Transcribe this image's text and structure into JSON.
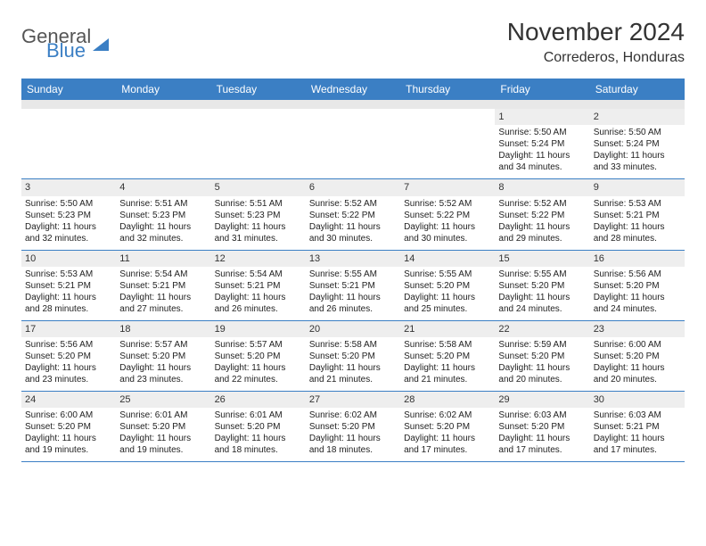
{
  "logo": {
    "text1": "General",
    "text2": "Blue"
  },
  "title": "November 2024",
  "location": "Correderos, Honduras",
  "colors": {
    "header_bg": "#3b7fc4",
    "header_text": "#ffffff",
    "daynum_bg": "#eeeeee",
    "border": "#3b7fc4",
    "body_text": "#222222",
    "title_text": "#333333"
  },
  "weekdays": [
    "Sunday",
    "Monday",
    "Tuesday",
    "Wednesday",
    "Thursday",
    "Friday",
    "Saturday"
  ],
  "weeks": [
    [
      null,
      null,
      null,
      null,
      null,
      {
        "n": "1",
        "sr": "5:50 AM",
        "ss": "5:24 PM",
        "dl": "11 hours and 34 minutes."
      },
      {
        "n": "2",
        "sr": "5:50 AM",
        "ss": "5:24 PM",
        "dl": "11 hours and 33 minutes."
      }
    ],
    [
      {
        "n": "3",
        "sr": "5:50 AM",
        "ss": "5:23 PM",
        "dl": "11 hours and 32 minutes."
      },
      {
        "n": "4",
        "sr": "5:51 AM",
        "ss": "5:23 PM",
        "dl": "11 hours and 32 minutes."
      },
      {
        "n": "5",
        "sr": "5:51 AM",
        "ss": "5:23 PM",
        "dl": "11 hours and 31 minutes."
      },
      {
        "n": "6",
        "sr": "5:52 AM",
        "ss": "5:22 PM",
        "dl": "11 hours and 30 minutes."
      },
      {
        "n": "7",
        "sr": "5:52 AM",
        "ss": "5:22 PM",
        "dl": "11 hours and 30 minutes."
      },
      {
        "n": "8",
        "sr": "5:52 AM",
        "ss": "5:22 PM",
        "dl": "11 hours and 29 minutes."
      },
      {
        "n": "9",
        "sr": "5:53 AM",
        "ss": "5:21 PM",
        "dl": "11 hours and 28 minutes."
      }
    ],
    [
      {
        "n": "10",
        "sr": "5:53 AM",
        "ss": "5:21 PM",
        "dl": "11 hours and 28 minutes."
      },
      {
        "n": "11",
        "sr": "5:54 AM",
        "ss": "5:21 PM",
        "dl": "11 hours and 27 minutes."
      },
      {
        "n": "12",
        "sr": "5:54 AM",
        "ss": "5:21 PM",
        "dl": "11 hours and 26 minutes."
      },
      {
        "n": "13",
        "sr": "5:55 AM",
        "ss": "5:21 PM",
        "dl": "11 hours and 26 minutes."
      },
      {
        "n": "14",
        "sr": "5:55 AM",
        "ss": "5:20 PM",
        "dl": "11 hours and 25 minutes."
      },
      {
        "n": "15",
        "sr": "5:55 AM",
        "ss": "5:20 PM",
        "dl": "11 hours and 24 minutes."
      },
      {
        "n": "16",
        "sr": "5:56 AM",
        "ss": "5:20 PM",
        "dl": "11 hours and 24 minutes."
      }
    ],
    [
      {
        "n": "17",
        "sr": "5:56 AM",
        "ss": "5:20 PM",
        "dl": "11 hours and 23 minutes."
      },
      {
        "n": "18",
        "sr": "5:57 AM",
        "ss": "5:20 PM",
        "dl": "11 hours and 23 minutes."
      },
      {
        "n": "19",
        "sr": "5:57 AM",
        "ss": "5:20 PM",
        "dl": "11 hours and 22 minutes."
      },
      {
        "n": "20",
        "sr": "5:58 AM",
        "ss": "5:20 PM",
        "dl": "11 hours and 21 minutes."
      },
      {
        "n": "21",
        "sr": "5:58 AM",
        "ss": "5:20 PM",
        "dl": "11 hours and 21 minutes."
      },
      {
        "n": "22",
        "sr": "5:59 AM",
        "ss": "5:20 PM",
        "dl": "11 hours and 20 minutes."
      },
      {
        "n": "23",
        "sr": "6:00 AM",
        "ss": "5:20 PM",
        "dl": "11 hours and 20 minutes."
      }
    ],
    [
      {
        "n": "24",
        "sr": "6:00 AM",
        "ss": "5:20 PM",
        "dl": "11 hours and 19 minutes."
      },
      {
        "n": "25",
        "sr": "6:01 AM",
        "ss": "5:20 PM",
        "dl": "11 hours and 19 minutes."
      },
      {
        "n": "26",
        "sr": "6:01 AM",
        "ss": "5:20 PM",
        "dl": "11 hours and 18 minutes."
      },
      {
        "n": "27",
        "sr": "6:02 AM",
        "ss": "5:20 PM",
        "dl": "11 hours and 18 minutes."
      },
      {
        "n": "28",
        "sr": "6:02 AM",
        "ss": "5:20 PM",
        "dl": "11 hours and 17 minutes."
      },
      {
        "n": "29",
        "sr": "6:03 AM",
        "ss": "5:20 PM",
        "dl": "11 hours and 17 minutes."
      },
      {
        "n": "30",
        "sr": "6:03 AM",
        "ss": "5:21 PM",
        "dl": "11 hours and 17 minutes."
      }
    ]
  ],
  "labels": {
    "sunrise": "Sunrise:",
    "sunset": "Sunset:",
    "daylight": "Daylight:"
  }
}
